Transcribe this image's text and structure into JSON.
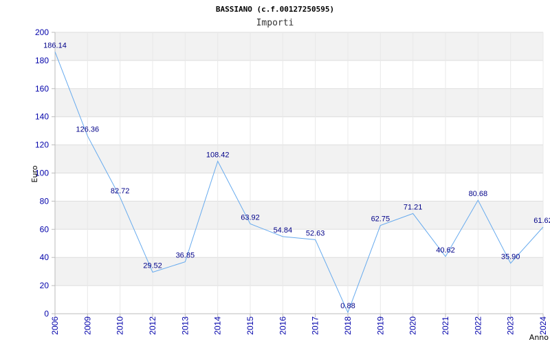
{
  "chart_data": {
    "type": "line",
    "title": "BASSIANO (c.f.00127250595)",
    "subtitle": "Importi",
    "xlabel": "Anno",
    "ylabel": "Euro",
    "ylim": [
      0,
      200
    ],
    "yticks": [
      0,
      20,
      40,
      60,
      80,
      100,
      120,
      140,
      160,
      180,
      200
    ],
    "categories": [
      "2006",
      "2009",
      "2010",
      "2012",
      "2013",
      "2014",
      "2015",
      "2016",
      "2017",
      "2018",
      "2019",
      "2020",
      "2021",
      "2022",
      "2023",
      "2024"
    ],
    "values": [
      186.14,
      126.36,
      82.72,
      29.52,
      36.85,
      108.42,
      63.92,
      54.84,
      52.63,
      0.88,
      62.75,
      71.21,
      40.62,
      80.68,
      35.9,
      61.62
    ],
    "value_labels": [
      "186.14",
      "126.36",
      "82.72",
      "29.52",
      "36.85",
      "108.42",
      "63.92",
      "54.84",
      "52.63",
      "0.88",
      "62.75",
      "71.21",
      "40.62",
      "80.68",
      "35.90",
      "61.62"
    ],
    "grid": true,
    "colors": {
      "line": "#66aaee",
      "band": "#f2f2f2",
      "tick_text": "#0000aa",
      "label_text": "#000088"
    }
  }
}
